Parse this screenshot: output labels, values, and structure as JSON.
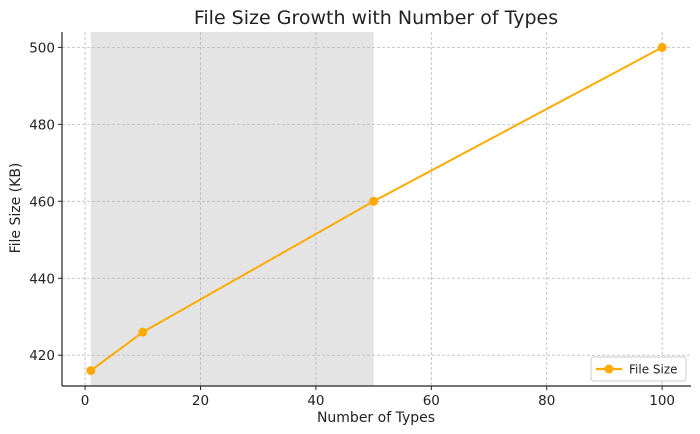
{
  "chart_data": {
    "type": "line",
    "title": "File Size Growth with Number of Types",
    "xlabel": "Number of Types",
    "ylabel": "File Size (KB)",
    "xlim": [
      -4,
      105
    ],
    "ylim": [
      412,
      504
    ],
    "x_ticks": [
      0,
      20,
      40,
      60,
      80,
      100
    ],
    "y_ticks": [
      420,
      440,
      460,
      480,
      500
    ],
    "grid": true,
    "legend_position": "bottom-right",
    "shaded_region": {
      "x": [
        1,
        50
      ],
      "color": "#e4e4e4"
    },
    "series": [
      {
        "name": "File Size",
        "color": "#ffaa00",
        "marker": "circle",
        "x": [
          1,
          10,
          50,
          100
        ],
        "y": [
          416,
          426,
          460,
          500
        ]
      }
    ]
  }
}
